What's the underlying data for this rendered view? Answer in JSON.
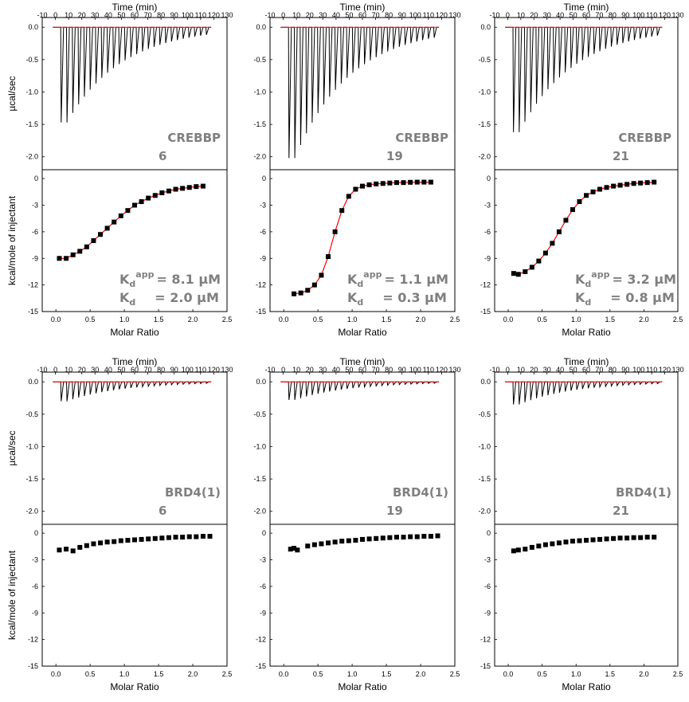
{
  "axes_text": {
    "time_label": "Time (min)",
    "power_label": "µcal/sec",
    "heat_label": "kcal/mole of injectant",
    "ratio_label": "Molar Ratio",
    "time_ticks": [
      -10,
      0,
      10,
      20,
      30,
      40,
      50,
      60,
      70,
      80,
      90,
      100,
      110,
      120,
      130
    ],
    "power_ticks": [
      "0.0",
      "-0.5",
      "-1.0",
      "-1.5",
      "-2.0"
    ],
    "heat_ticks": [
      "0",
      "-3",
      "-6",
      "-9",
      "-12",
      "-15"
    ],
    "ratio_ticks": [
      "0.0",
      "0.5",
      "1.0",
      "1.5",
      "2.0",
      "2.5"
    ]
  },
  "colors": {
    "raw_trace": "#000000",
    "fit": "#ff0000",
    "points": "#000000",
    "annotation": "#7f7f7f"
  },
  "chart_data": [
    {
      "type": "scatter",
      "protein": "CREBBP",
      "compound": "6",
      "kd_app_text": "= 8.1 µM",
      "kd_text": "= 2.0 µM",
      "xlim": [
        -0.2,
        2.5
      ],
      "ylim": [
        -15,
        1
      ],
      "raw_xlim": [
        -10,
        130
      ],
      "raw_ylim": [
        -2.2,
        0.15
      ],
      "raw_peak_min": -1.47,
      "fit": true,
      "x": [
        0.05,
        0.15,
        0.25,
        0.35,
        0.45,
        0.55,
        0.65,
        0.75,
        0.85,
        0.95,
        1.05,
        1.15,
        1.25,
        1.35,
        1.45,
        1.55,
        1.65,
        1.75,
        1.85,
        1.95,
        2.05,
        2.15
      ],
      "y": [
        -9.0,
        -9.0,
        -8.6,
        -8.2,
        -7.7,
        -7.0,
        -6.3,
        -5.6,
        -4.9,
        -4.2,
        -3.6,
        -3.0,
        -2.6,
        -2.2,
        -1.9,
        -1.6,
        -1.4,
        -1.2,
        -1.1,
        -1.0,
        -0.9,
        -0.85
      ]
    },
    {
      "type": "scatter",
      "protein": "CREBBP",
      "compound": "19",
      "kd_app_text": "= 1.1 µM",
      "kd_text": "= 0.3 µM",
      "xlim": [
        -0.2,
        2.5
      ],
      "ylim": [
        -15,
        1
      ],
      "raw_xlim": [
        -10,
        130
      ],
      "raw_ylim": [
        -2.2,
        0.15
      ],
      "raw_peak_min": -2.02,
      "fit": true,
      "x": [
        0.15,
        0.25,
        0.35,
        0.45,
        0.55,
        0.65,
        0.75,
        0.85,
        0.95,
        1.05,
        1.15,
        1.25,
        1.35,
        1.45,
        1.55,
        1.65,
        1.75,
        1.85,
        1.95,
        2.05,
        2.15
      ],
      "y": [
        -13.0,
        -12.9,
        -12.6,
        -12.0,
        -10.9,
        -8.8,
        -6.0,
        -3.6,
        -2.0,
        -1.2,
        -0.85,
        -0.7,
        -0.6,
        -0.55,
        -0.5,
        -0.45,
        -0.45,
        -0.42,
        -0.4,
        -0.4,
        -0.4
      ]
    },
    {
      "type": "scatter",
      "protein": "CREBBP",
      "compound": "21",
      "kd_app_text": "= 3.2 µM",
      "kd_text": "= 0.8 µM",
      "xlim": [
        -0.2,
        2.5
      ],
      "ylim": [
        -15,
        1
      ],
      "raw_xlim": [
        -10,
        130
      ],
      "raw_ylim": [
        -2.2,
        0.15
      ],
      "raw_peak_min": -1.62,
      "fit": true,
      "x": [
        0.08,
        0.15,
        0.25,
        0.35,
        0.45,
        0.55,
        0.65,
        0.75,
        0.85,
        0.95,
        1.05,
        1.15,
        1.25,
        1.35,
        1.45,
        1.55,
        1.65,
        1.75,
        1.85,
        1.95,
        2.05,
        2.15
      ],
      "y": [
        -10.7,
        -10.8,
        -10.5,
        -10.0,
        -9.3,
        -8.4,
        -7.3,
        -6.0,
        -4.7,
        -3.5,
        -2.6,
        -1.9,
        -1.5,
        -1.2,
        -1.0,
        -0.85,
        -0.75,
        -0.65,
        -0.55,
        -0.5,
        -0.45,
        -0.4
      ]
    },
    {
      "type": "scatter",
      "protein": "BRD4(1)",
      "compound": "6",
      "xlim": [
        -0.2,
        2.5
      ],
      "ylim": [
        -15,
        1
      ],
      "raw_xlim": [
        -10,
        130
      ],
      "raw_ylim": [
        -2.2,
        0.15
      ],
      "raw_peak_min": -0.3,
      "fit": false,
      "x": [
        0.05,
        0.15,
        0.25,
        0.35,
        0.45,
        0.55,
        0.65,
        0.75,
        0.85,
        0.95,
        1.05,
        1.15,
        1.25,
        1.35,
        1.45,
        1.55,
        1.65,
        1.75,
        1.85,
        1.95,
        2.05,
        2.15,
        2.25
      ],
      "y": [
        -1.9,
        -1.8,
        -2.0,
        -1.6,
        -1.4,
        -1.2,
        -1.1,
        -1.0,
        -0.95,
        -0.85,
        -0.8,
        -0.75,
        -0.7,
        -0.65,
        -0.6,
        -0.55,
        -0.5,
        -0.45,
        -0.45,
        -0.4,
        -0.4,
        -0.35,
        -0.35
      ]
    },
    {
      "type": "scatter",
      "protein": "BRD4(1)",
      "compound": "19",
      "xlim": [
        -0.2,
        2.5
      ],
      "ylim": [
        -15,
        1
      ],
      "raw_xlim": [
        -10,
        130
      ],
      "raw_ylim": [
        -2.2,
        0.15
      ],
      "raw_peak_min": -0.28,
      "fit": false,
      "x": [
        0.1,
        0.15,
        0.2,
        0.35,
        0.45,
        0.55,
        0.65,
        0.75,
        0.85,
        0.95,
        1.05,
        1.15,
        1.25,
        1.35,
        1.45,
        1.55,
        1.65,
        1.75,
        1.85,
        1.95,
        2.05,
        2.15,
        2.25
      ],
      "y": [
        -1.8,
        -1.7,
        -1.9,
        -1.45,
        -1.3,
        -1.2,
        -1.1,
        -1.0,
        -0.9,
        -0.85,
        -0.8,
        -0.7,
        -0.65,
        -0.6,
        -0.55,
        -0.5,
        -0.45,
        -0.45,
        -0.4,
        -0.4,
        -0.35,
        -0.35,
        -0.3
      ]
    },
    {
      "type": "scatter",
      "protein": "BRD4(1)",
      "compound": "21",
      "xlim": [
        -0.2,
        2.5
      ],
      "ylim": [
        -15,
        1
      ],
      "raw_xlim": [
        -10,
        130
      ],
      "raw_ylim": [
        -2.2,
        0.15
      ],
      "raw_peak_min": -0.35,
      "fit": false,
      "x": [
        0.08,
        0.15,
        0.25,
        0.35,
        0.45,
        0.55,
        0.65,
        0.75,
        0.85,
        0.95,
        1.05,
        1.15,
        1.25,
        1.35,
        1.45,
        1.55,
        1.65,
        1.75,
        1.85,
        1.95,
        2.05,
        2.15
      ],
      "y": [
        -2.0,
        -1.9,
        -1.8,
        -1.6,
        -1.45,
        -1.3,
        -1.2,
        -1.1,
        -1.0,
        -0.9,
        -0.85,
        -0.8,
        -0.75,
        -0.7,
        -0.65,
        -0.6,
        -0.55,
        -0.55,
        -0.5,
        -0.5,
        -0.45,
        -0.45
      ]
    }
  ]
}
